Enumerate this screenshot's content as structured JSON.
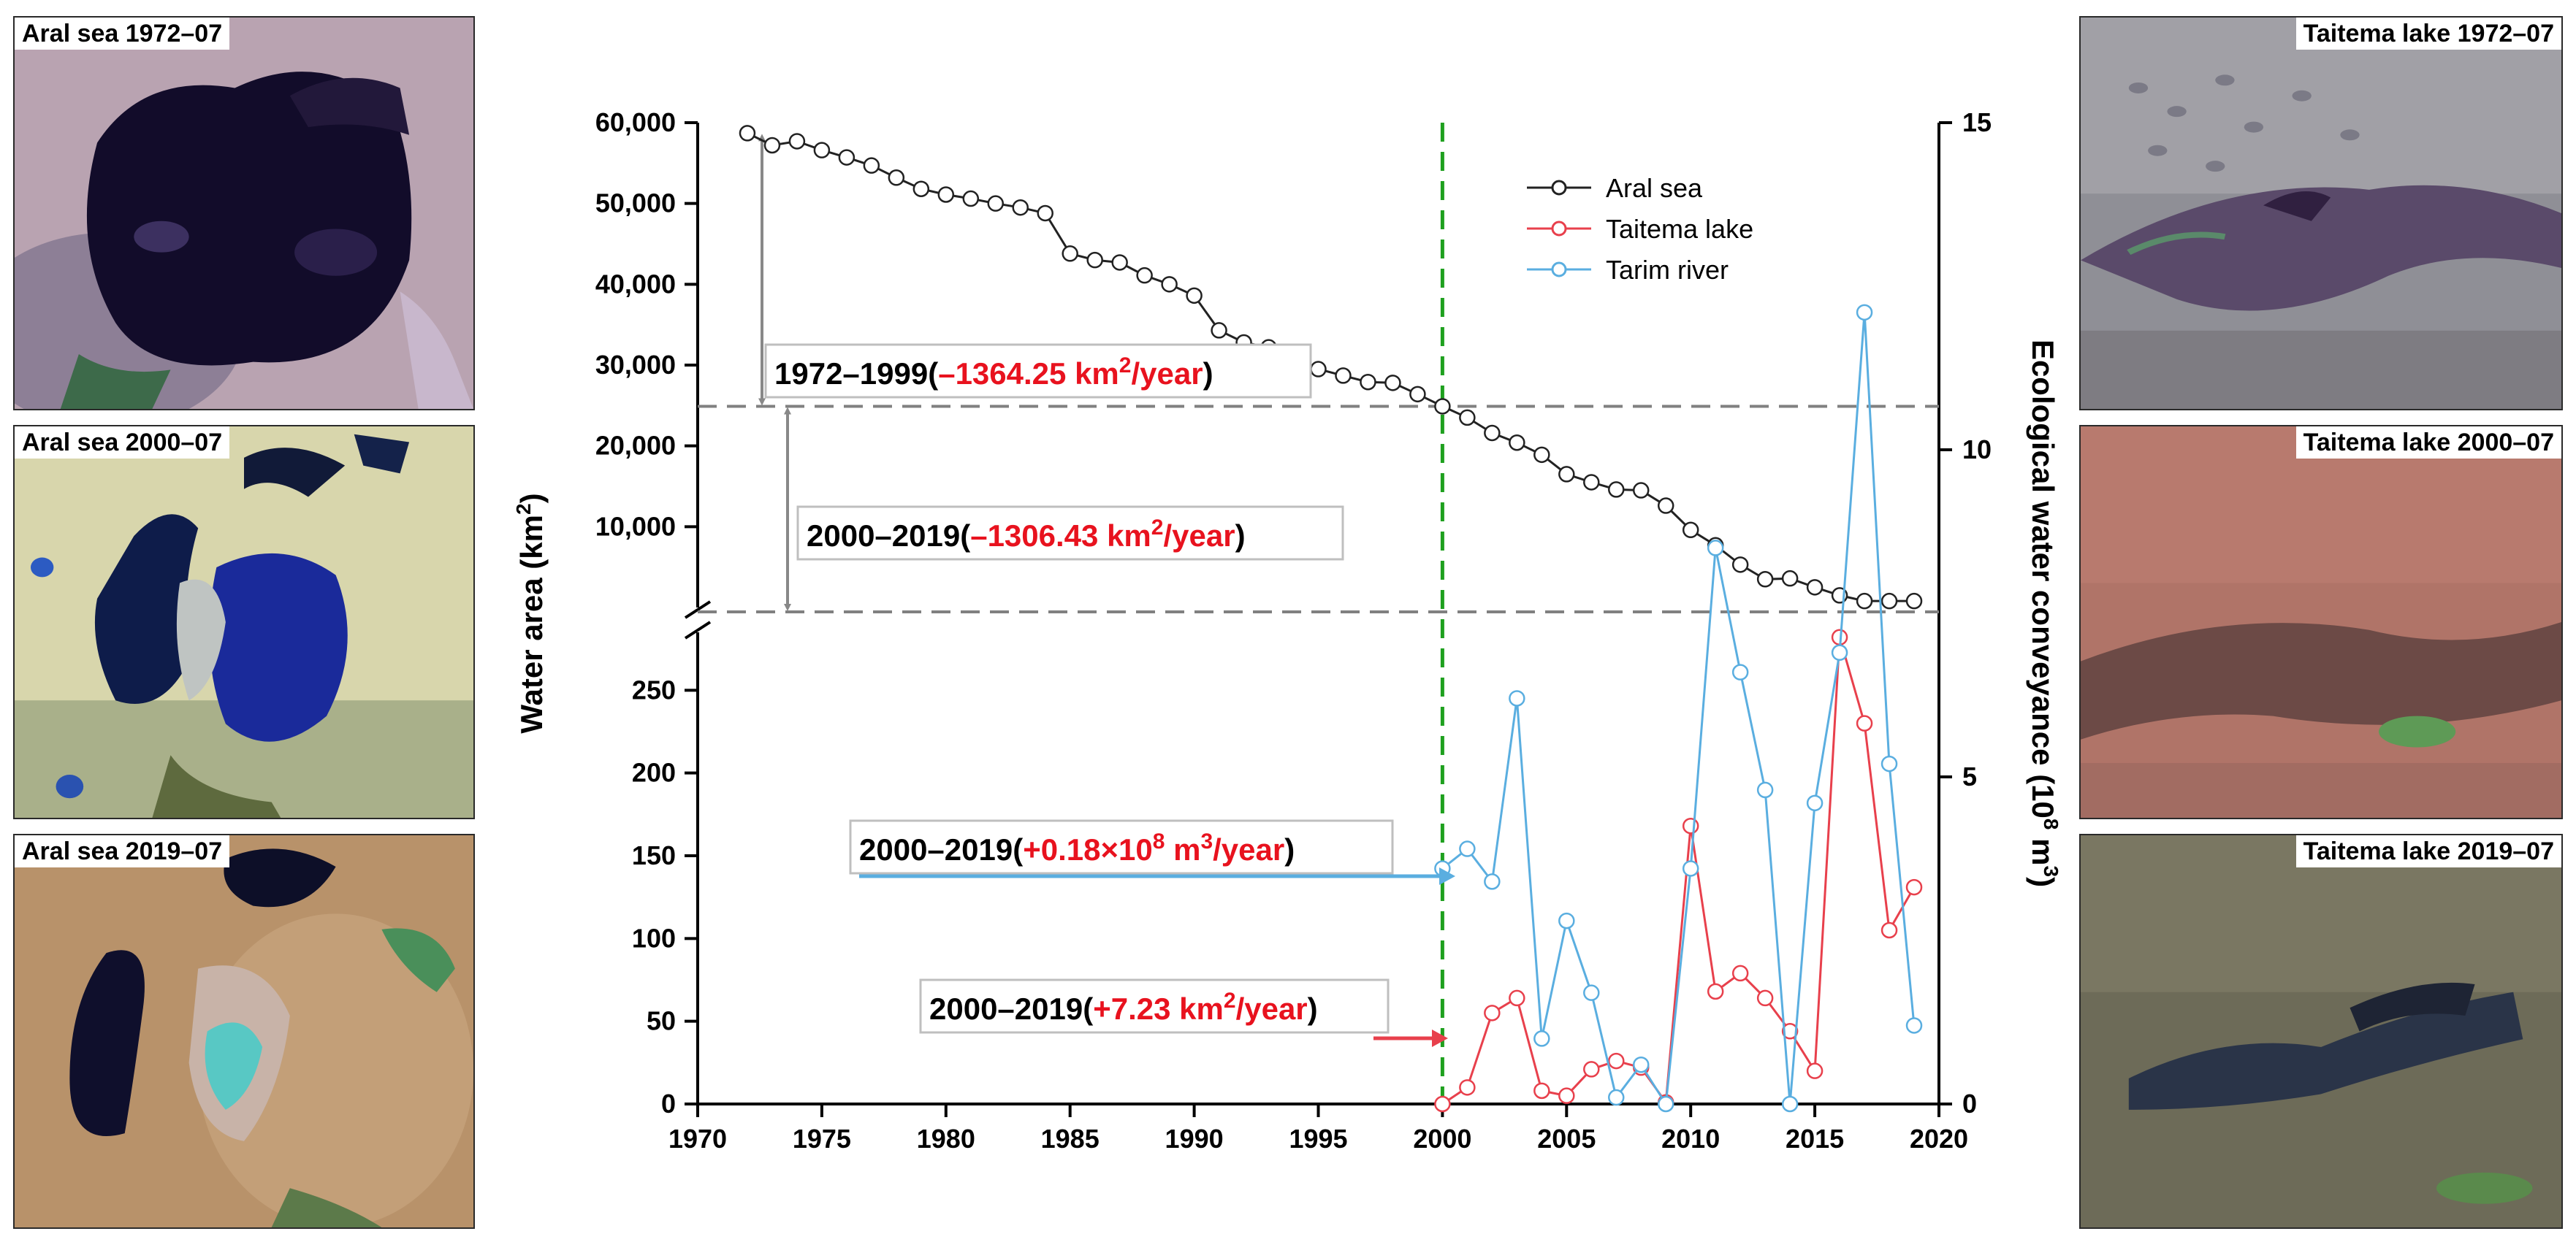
{
  "panels": {
    "aral_1972": {
      "label": "Aral sea  1972–07"
    },
    "aral_2000": {
      "label": "Aral sea  2000–07"
    },
    "aral_2019": {
      "label": "Aral sea  2019–07"
    },
    "taitema_1972": {
      "label": "Taitema lake  1972–07"
    },
    "taitema_2000": {
      "label": "Taitema lake  2000–07"
    },
    "taitema_2019": {
      "label": "Taitema lake  2019–07"
    }
  },
  "chart_data": {
    "type": "line",
    "xlabel": "",
    "ylabel_left": "Water area (km",
    "ylabel_left_sup": "2",
    "ylabel_left_end": ")",
    "ylabel_right": "Ecological water conveyance (10",
    "ylabel_right_sup": "8",
    "ylabel_right_mid": " m",
    "ylabel_right_sup2": "3",
    "ylabel_right_end": ")",
    "xlim": [
      1970,
      2020
    ],
    "x_ticks": [
      "1970",
      "1975",
      "1980",
      "1985",
      "1990",
      "1995",
      "2000",
      "2005",
      "2010",
      "2015",
      "2020"
    ],
    "left_upper_ylim": [
      0,
      60000
    ],
    "left_upper_ticks": [
      "60,000",
      "50,000",
      "40,000",
      "30,000",
      "20,000",
      "10,000"
    ],
    "left_lower_ylim": [
      0,
      285
    ],
    "left_lower_ticks": [
      "250",
      "200",
      "150",
      "100",
      "50",
      "0"
    ],
    "right_ylim": [
      0,
      15
    ],
    "right_ticks": [
      "15",
      "10",
      "5",
      "0"
    ],
    "vline_x": 2000,
    "series": [
      {
        "name": "Aral sea",
        "color": "#222222",
        "axis": "left_upper",
        "x": [
          1972,
          1973,
          1974,
          1975,
          1976,
          1977,
          1978,
          1979,
          1980,
          1981,
          1982,
          1983,
          1984,
          1985,
          1986,
          1987,
          1988,
          1989,
          1990,
          1991,
          1992,
          1993,
          1994,
          1995,
          1996,
          1997,
          1998,
          1999,
          2000,
          2001,
          2002,
          2003,
          2004,
          2005,
          2006,
          2007,
          2008,
          2009,
          2010,
          2011,
          2012,
          2013,
          2014,
          2015,
          2016,
          2017,
          2018,
          2019
        ],
        "values": [
          58700,
          57200,
          57700,
          56600,
          55700,
          54700,
          53200,
          51800,
          51100,
          50600,
          50000,
          49500,
          48800,
          43800,
          43000,
          42700,
          41100,
          40000,
          38600,
          34300,
          32800,
          32200,
          30600,
          29500,
          28700,
          27900,
          27800,
          26400,
          24900,
          23500,
          21600,
          20400,
          18900,
          16500,
          15500,
          14600,
          14500,
          12600,
          9600,
          7700,
          5300,
          3500,
          3600,
          2500,
          1500,
          800,
          800,
          800
        ]
      },
      {
        "name": "Taitema lake",
        "color": "#e8404c",
        "axis": "left_lower",
        "x": [
          2000,
          2001,
          2002,
          2003,
          2004,
          2005,
          2006,
          2007,
          2008,
          2009,
          2010,
          2011,
          2012,
          2013,
          2014,
          2015,
          2016,
          2017,
          2018,
          2019
        ],
        "values": [
          0,
          10,
          55,
          64,
          8,
          5,
          21,
          26,
          22,
          1,
          168,
          68,
          79,
          64,
          44,
          20,
          282,
          230,
          105,
          131
        ]
      },
      {
        "name": "Tarim river",
        "color": "#5aaee0",
        "axis": "right",
        "x": [
          2000,
          2001,
          2002,
          2003,
          2004,
          2005,
          2006,
          2007,
          2008,
          2009,
          2010,
          2011,
          2012,
          2013,
          2014,
          2015,
          2016,
          2017,
          2018,
          2019
        ],
        "values": [
          3.6,
          3.9,
          3.4,
          6.2,
          1.0,
          2.8,
          1.7,
          0.1,
          0.6,
          0.0,
          3.6,
          8.5,
          6.6,
          4.8,
          0.0,
          4.6,
          6.9,
          12.1,
          5.2,
          1.2
        ]
      }
    ],
    "legend": [
      "Aral sea",
      "Taitema lake",
      "Tarim river"
    ],
    "annotations": {
      "a1": {
        "prefix": "1972–1999(",
        "value": "–1364.25 km",
        "sup": "2",
        "suffix": "/year",
        "close": ")"
      },
      "a2": {
        "prefix": "2000–2019(",
        "value": "–1306.43 km",
        "sup": "2",
        "suffix": "/year",
        "close": ")"
      },
      "a3": {
        "prefix": "2000–2019(",
        "value": "+0.18×10",
        "sup": "8",
        "mid": " m",
        "sup2": "3",
        "suffix": "/year",
        "close": ")"
      },
      "a4": {
        "prefix": "2000–2019(",
        "value": "+7.23 km",
        "sup": "2",
        "suffix": "/year",
        "close": ")"
      }
    },
    "colors": {
      "vline": "#1ea01e",
      "dash": "#808080",
      "annotation_value": "#e8121e",
      "arrow_gray": "#888888"
    }
  }
}
